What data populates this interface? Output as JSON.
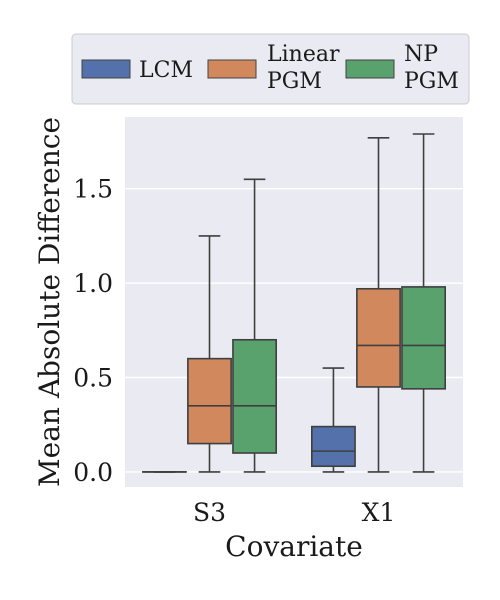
{
  "chart_data": {
    "type": "box",
    "xlabel": "Covariate",
    "ylabel": "Mean Absolute Difference",
    "ylim": [
      -0.08,
      1.88
    ],
    "yticks": [
      "0.0",
      "0.5",
      "1.0",
      "1.5"
    ],
    "ytick_values": [
      0.0,
      0.5,
      1.0,
      1.5
    ],
    "categories": [
      "S3",
      "X1"
    ],
    "grid": true,
    "legend_position": "top",
    "legend": [
      {
        "lines": [
          "LCM"
        ]
      },
      {
        "lines": [
          "Linear",
          "PGM"
        ]
      },
      {
        "lines": [
          "NP",
          "PGM"
        ]
      }
    ],
    "series": [
      {
        "name": "LCM",
        "color": "#5471ab",
        "boxes": [
          {
            "category": "S3",
            "whisker_low": 0.0,
            "q1": 0.0,
            "median": 0.0,
            "q3": 0.0,
            "whisker_high": 0.0
          },
          {
            "category": "X1",
            "whisker_low": 0.0,
            "q1": 0.03,
            "median": 0.11,
            "q3": 0.24,
            "whisker_high": 0.55
          }
        ]
      },
      {
        "name": "Linear PGM",
        "color": "#d1885c",
        "boxes": [
          {
            "category": "S3",
            "whisker_low": 0.0,
            "q1": 0.15,
            "median": 0.35,
            "q3": 0.6,
            "whisker_high": 1.25
          },
          {
            "category": "X1",
            "whisker_low": 0.0,
            "q1": 0.45,
            "median": 0.67,
            "q3": 0.97,
            "whisker_high": 1.77
          }
        ]
      },
      {
        "name": "NP PGM",
        "color": "#59a16d",
        "boxes": [
          {
            "category": "S3",
            "whisker_low": 0.0,
            "q1": 0.1,
            "median": 0.35,
            "q3": 0.7,
            "whisker_high": 1.55
          },
          {
            "category": "X1",
            "whisker_low": 0.0,
            "q1": 0.44,
            "median": 0.67,
            "q3": 0.98,
            "whisker_high": 1.79
          }
        ]
      }
    ]
  }
}
